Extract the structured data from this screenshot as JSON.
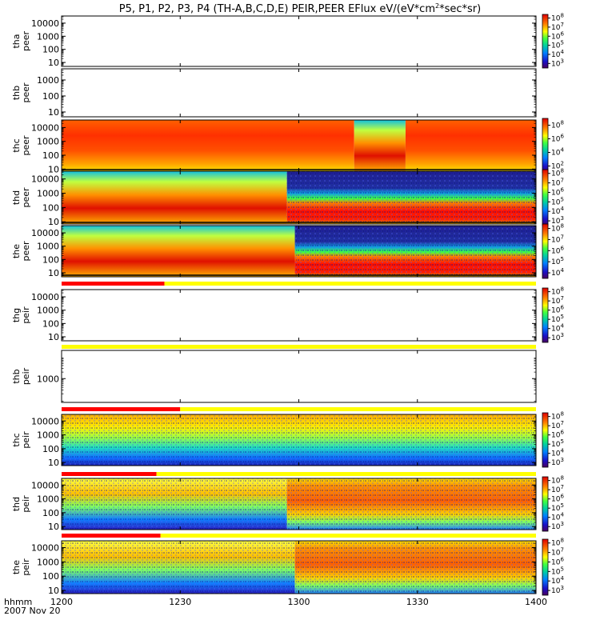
{
  "chart_data": {
    "type": "heatmap",
    "title": "P5, P1, P2, P3, P4 (TH-A,B,C,D,E) PEIR,PEER EFlux eV/(eV*cm",
    "title_units_tail": "*sec*sr)",
    "title_superscript": "2",
    "x_axis": {
      "label": "hhmm",
      "date": "2007 Nov 20",
      "range": [
        "12:00",
        "14:00"
      ],
      "ticks": [
        "1200",
        "1230",
        "1300",
        "1330",
        "1400"
      ]
    },
    "y_axis": {
      "scale": "log",
      "units": "eV"
    },
    "panels": [
      {
        "probe": "tha",
        "instrument": "peer",
        "ylim": [
          5,
          35000
        ],
        "yticks": [
          "10",
          "100",
          "1000",
          "10000"
        ],
        "has_data": false,
        "colorbar": {
          "min_exp": 2.5,
          "max_exp": 8.4,
          "labels": [
            "3",
            "4",
            "5",
            "6",
            "7",
            "8"
          ]
        },
        "segments": []
      },
      {
        "probe": "thb",
        "instrument": "peer",
        "ylim": [
          5,
          5000
        ],
        "yticks": [
          "10",
          "100",
          "1000"
        ],
        "has_data": false,
        "colorbar": null,
        "segments": []
      },
      {
        "probe": "thc",
        "instrument": "peer",
        "ylim": [
          7,
          35000
        ],
        "yticks": [
          "10",
          "100",
          "1000",
          "10000"
        ],
        "has_data": true,
        "colorbar": {
          "min_exp": 1,
          "max_exp": 9,
          "labels": [
            "2",
            "4",
            "6",
            "8"
          ]
        },
        "segments": [
          {
            "from": "12:00",
            "to": "13:14",
            "pattern": "broad high flux across all energies"
          },
          {
            "from": "13:14",
            "to": "13:27",
            "pattern": "variable flux with low-flux streaks"
          },
          {
            "from": "13:27",
            "to": "14:00",
            "pattern": "broad high flux across all energies"
          }
        ]
      },
      {
        "probe": "thd",
        "instrument": "peer",
        "ylim": [
          7,
          35000
        ],
        "yticks": [
          "10",
          "100",
          "1000",
          "10000"
        ],
        "has_data": true,
        "colorbar": {
          "min_exp": 2.5,
          "max_exp": 8.4,
          "labels": [
            "3",
            "4",
            "5",
            "6",
            "7",
            "8"
          ]
        },
        "segments": [
          {
            "from": "12:00",
            "to": "12:57",
            "pattern": "magnetosheath: high flux at 10-1000 eV"
          },
          {
            "from": "12:57",
            "to": "14:00",
            "pattern": "plasma sheet: high flux below 300 eV, low flux above 2000 eV"
          }
        ]
      },
      {
        "probe": "the",
        "instrument": "peer",
        "ylim": [
          5,
          35000
        ],
        "yticks": [
          "10",
          "100",
          "1000",
          "10000"
        ],
        "has_data": true,
        "colorbar": {
          "min_exp": 3.5,
          "max_exp": 8.4,
          "labels": [
            "4",
            "5",
            "6",
            "7",
            "8"
          ]
        },
        "segments": [
          {
            "from": "12:00",
            "to": "12:59",
            "pattern": "magnetosheath: high flux at 10-1000 eV"
          },
          {
            "from": "12:59",
            "to": "14:00",
            "pattern": "plasma sheet: high flux below 300 eV, low flux above 2000 eV"
          }
        ]
      },
      {
        "probe": "thg",
        "instrument": "peir",
        "ylim": [
          5,
          35000
        ],
        "yticks": [
          "10",
          "100",
          "1000",
          "10000"
        ],
        "has_data": false,
        "colorbar": {
          "min_exp": 2.5,
          "max_exp": 8.4,
          "labels": [
            "3",
            "4",
            "5",
            "6",
            "7",
            "8"
          ]
        },
        "segments": []
      },
      {
        "probe": "thb",
        "instrument": "peir",
        "ylim": [
          80,
          20000
        ],
        "yticks": [
          "1000"
        ],
        "has_data": false,
        "colorbar": null,
        "segments": []
      },
      {
        "probe": "thc",
        "instrument": "peir",
        "ylim": [
          6,
          30000
        ],
        "yticks": [
          "10",
          "100",
          "1000",
          "10000"
        ],
        "has_data": true,
        "colorbar": {
          "min_exp": 2.5,
          "max_exp": 8.4,
          "labels": [
            "3",
            "4",
            "5",
            "6",
            "7",
            "8"
          ]
        },
        "segments": [
          {
            "from": "12:00",
            "to": "14:00",
            "pattern": "high flux above 1000 eV, low flux below 100 eV"
          }
        ]
      },
      {
        "probe": "thd",
        "instrument": "peir",
        "ylim": [
          6,
          30000
        ],
        "yticks": [
          "10",
          "100",
          "1000",
          "10000"
        ],
        "has_data": true,
        "colorbar": {
          "min_exp": 2.5,
          "max_exp": 8.4,
          "labels": [
            "3",
            "4",
            "5",
            "6",
            "7",
            "8"
          ]
        },
        "segments": [
          {
            "from": "12:00",
            "to": "12:57",
            "pattern": "magnetosheath: variable high flux at 300-3000 eV"
          },
          {
            "from": "12:57",
            "to": "14:00",
            "pattern": "plasma sheet: high flux at 300-10000 eV"
          }
        ]
      },
      {
        "probe": "the",
        "instrument": "peir",
        "ylim": [
          6,
          30000
        ],
        "yticks": [
          "10",
          "100",
          "1000",
          "10000"
        ],
        "has_data": true,
        "colorbar": {
          "min_exp": 2.5,
          "max_exp": 8.4,
          "labels": [
            "3",
            "4",
            "5",
            "6",
            "7",
            "8"
          ]
        },
        "segments": [
          {
            "from": "12:00",
            "to": "12:59",
            "pattern": "magnetosheath: variable high flux at 300-3000 eV"
          },
          {
            "from": "12:59",
            "to": "14:00",
            "pattern": "plasma sheet: high flux at 300-10000 eV"
          }
        ]
      }
    ],
    "mode_bars": [
      {
        "after_panel": "the peer",
        "segments": [
          {
            "color": "#ff0000",
            "from": "12:00",
            "to": "12:26"
          },
          {
            "color": "#ffff00",
            "from": "12:26",
            "to": "14:00"
          }
        ]
      },
      {
        "after_panel": "thg peir",
        "segments": [
          {
            "color": "#ffff00",
            "from": "12:00",
            "to": "14:00"
          }
        ]
      },
      {
        "after_panel": "thb peir",
        "segments": [
          {
            "color": "#ff0000",
            "from": "12:00",
            "to": "12:30"
          },
          {
            "color": "#ffff00",
            "from": "12:30",
            "to": "14:00"
          }
        ]
      },
      {
        "after_panel": "thc peir",
        "segments": [
          {
            "color": "#ff0000",
            "from": "12:00",
            "to": "12:24"
          },
          {
            "color": "#ffff00",
            "from": "12:24",
            "to": "14:00"
          }
        ]
      },
      {
        "after_panel": "thd peir",
        "segments": [
          {
            "color": "#ff0000",
            "from": "12:00",
            "to": "12:25"
          },
          {
            "color": "#ffff00",
            "from": "12:25",
            "to": "14:00"
          }
        ]
      }
    ]
  }
}
